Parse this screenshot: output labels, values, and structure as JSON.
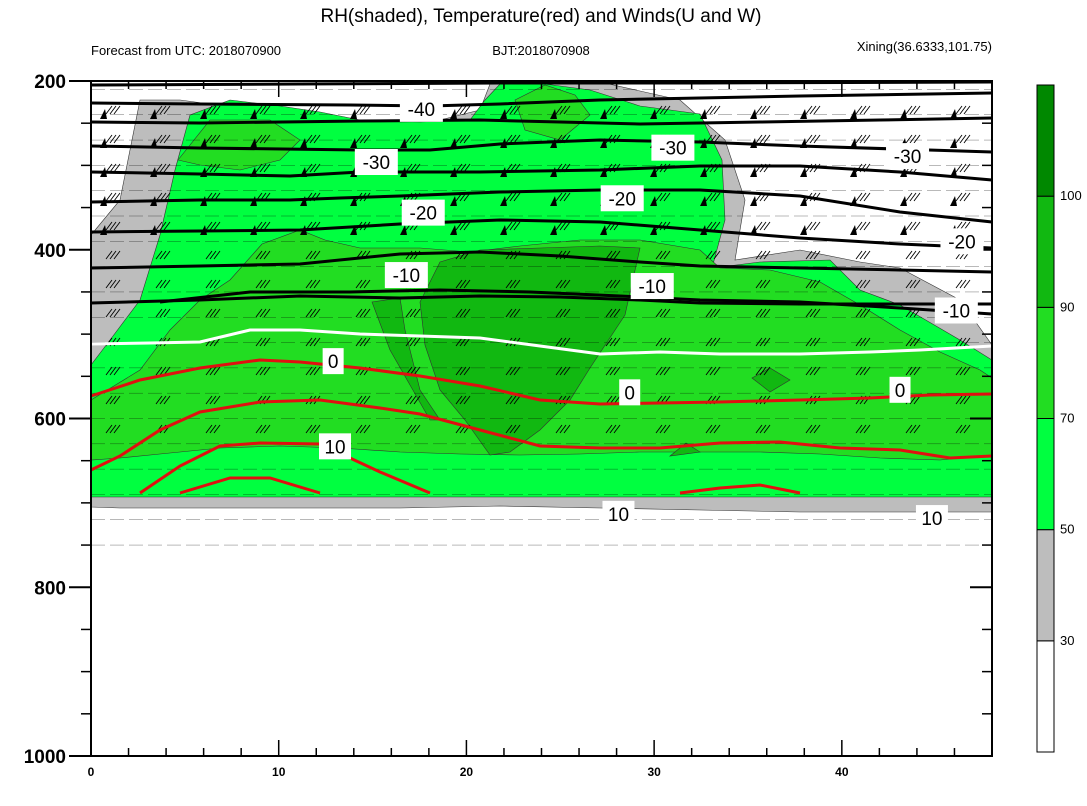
{
  "chart_data": {
    "type": "heatmap",
    "title": "RH(shaded), Temperature(red) and Winds(U and W)",
    "subtitle_left": "Forecast from UTC: 2018070900",
    "subtitle_center": "BJT:2018070908",
    "subtitle_right": "Xining(36.6333,101.75)",
    "x_axis": {
      "range": [
        0,
        48
      ],
      "ticks": [
        0,
        10,
        20,
        30,
        40
      ]
    },
    "y_axis": {
      "range": [
        200,
        1000
      ],
      "ticks": [
        200,
        400,
        600,
        800,
        1000
      ],
      "reversed": true
    },
    "colorbar": {
      "boundaries": [
        30,
        50,
        70,
        90,
        100
      ],
      "labels": [
        "30",
        "50",
        "70",
        "90",
        "100"
      ],
      "colors": [
        "#ffffff",
        "#bdbdbd",
        "#00ff40",
        "#22dd22",
        "#11b811",
        "#008800"
      ]
    },
    "grid": false,
    "contour_labels": [
      {
        "text": "-40",
        "x": 17.6,
        "p": 233,
        "kind": "cold"
      },
      {
        "text": "-30",
        "x": 15.2,
        "p": 296,
        "kind": "cold"
      },
      {
        "text": "-30",
        "x": 31.0,
        "p": 279,
        "kind": "cold"
      },
      {
        "text": "-30",
        "x": 43.5,
        "p": 289,
        "kind": "cold"
      },
      {
        "text": "-20",
        "x": 17.7,
        "p": 356,
        "kind": "cold"
      },
      {
        "text": "-20",
        "x": 28.3,
        "p": 339,
        "kind": "cold"
      },
      {
        "text": "-20",
        "x": 46.4,
        "p": 390,
        "kind": "cold"
      },
      {
        "text": "-10",
        "x": 16.8,
        "p": 430,
        "kind": "cold"
      },
      {
        "text": "-10",
        "x": 29.9,
        "p": 443,
        "kind": "cold"
      },
      {
        "text": "-10",
        "x": 46.1,
        "p": 472,
        "kind": "cold"
      },
      {
        "text": "0",
        "x": 12.9,
        "p": 532,
        "kind": "zero"
      },
      {
        "text": "0",
        "x": 28.7,
        "p": 569,
        "kind": "zero"
      },
      {
        "text": "0",
        "x": 43.1,
        "p": 566,
        "kind": "zero"
      },
      {
        "text": "10",
        "x": 13.0,
        "p": 633,
        "kind": "warm"
      },
      {
        "text": "10",
        "x": 28.1,
        "p": 713,
        "kind": "warm"
      },
      {
        "text": "10",
        "x": 44.8,
        "p": 718,
        "kind": "warm"
      }
    ]
  }
}
